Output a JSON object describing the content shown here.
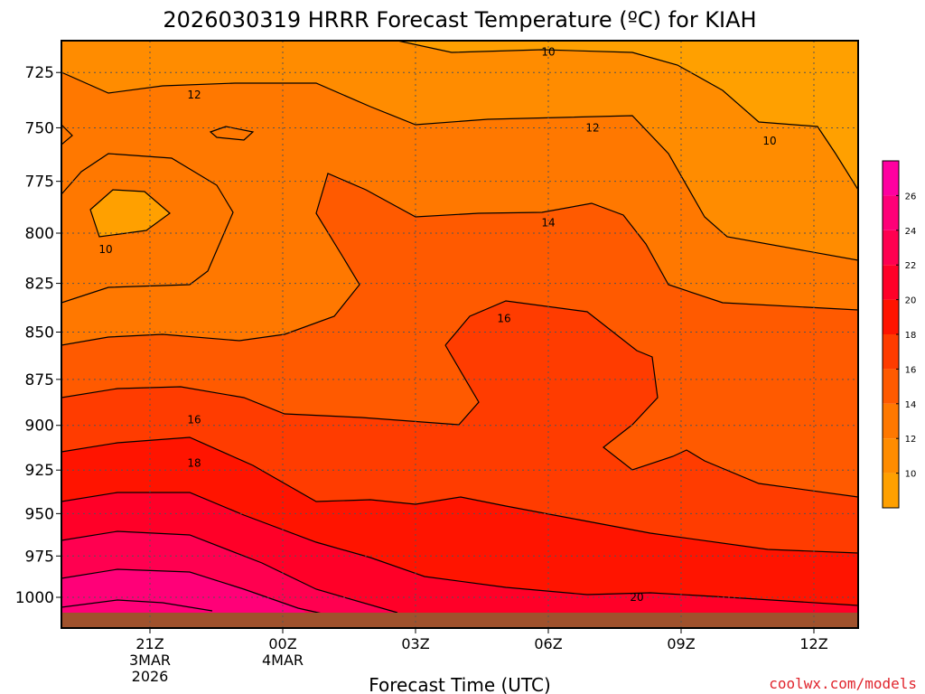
{
  "chart_data": {
    "type": "heatmap",
    "title": "2026030319 HRRR Forecast Temperature (ºC) for KIAH",
    "xlabel": "Forecast Time (UTC)",
    "credit": "coolwx.com/models",
    "x_ticks": [
      {
        "hour": 2,
        "lines": [
          "21Z",
          "3MAR",
          "2026"
        ]
      },
      {
        "hour": 5,
        "lines": [
          "00Z",
          "4MAR"
        ]
      },
      {
        "hour": 8,
        "lines": [
          "03Z"
        ]
      },
      {
        "hour": 11,
        "lines": [
          "06Z"
        ]
      },
      {
        "hour": 14,
        "lines": [
          "09Z"
        ]
      },
      {
        "hour": 17,
        "lines": [
          "12Z"
        ]
      }
    ],
    "x_range_hours": [
      0,
      18
    ],
    "y_ticks": [
      725,
      750,
      775,
      800,
      825,
      850,
      875,
      900,
      925,
      950,
      975,
      1000
    ],
    "y_range_hpa": [
      711,
      1019
    ],
    "y_scale": "log-pressure",
    "colorbar": {
      "levels": [
        8,
        10,
        12,
        14,
        16,
        18,
        20,
        22,
        24,
        26,
        28
      ],
      "tick_labels": [
        "10",
        "12",
        "14",
        "16",
        "18",
        "20",
        "22",
        "24",
        "26"
      ],
      "colors": [
        "#ffa000",
        "#ff8c00",
        "#ff7800",
        "#ff5a00",
        "#ff3c00",
        "#ff1400",
        "#ff0028",
        "#ff0050",
        "#ff0078",
        "#ff00a0"
      ]
    },
    "contour_labels": [
      {
        "text": "10",
        "hour": 11.0,
        "hpa": 716
      },
      {
        "text": "12",
        "hour": 3.0,
        "hpa": 735
      },
      {
        "text": "12",
        "hour": 12.0,
        "hpa": 750
      },
      {
        "text": "10",
        "hour": 16.0,
        "hpa": 756
      },
      {
        "text": "10",
        "hour": 1.0,
        "hpa": 808
      },
      {
        "text": "14",
        "hour": 11.0,
        "hpa": 795
      },
      {
        "text": "16",
        "hour": 10.0,
        "hpa": 843
      },
      {
        "text": "16",
        "hour": 3.0,
        "hpa": 897
      },
      {
        "text": "18",
        "hour": 3.0,
        "hpa": 921
      },
      {
        "text": "20",
        "hour": 13.0,
        "hpa": 1000
      }
    ],
    "ground_color": "#a0522d"
  }
}
